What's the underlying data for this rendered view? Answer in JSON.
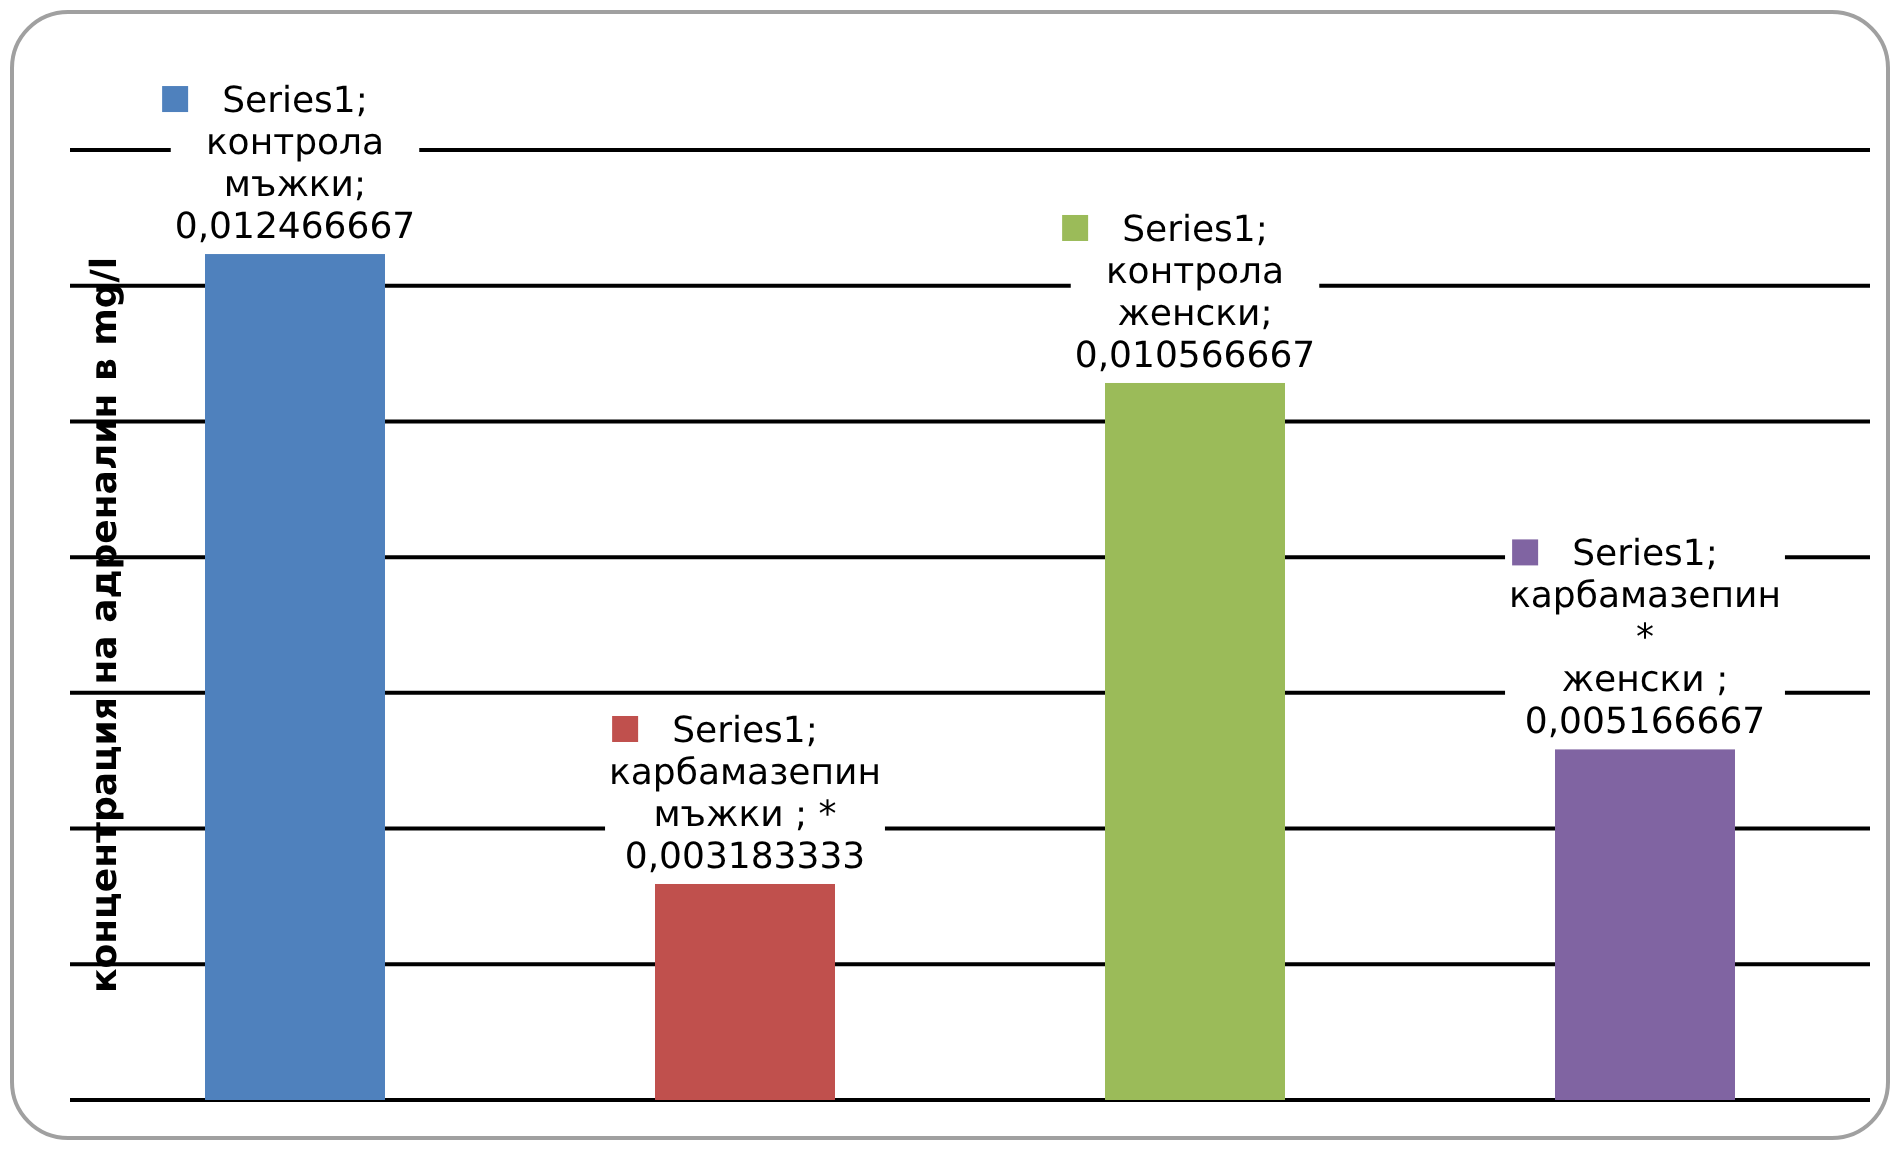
{
  "chart_data": {
    "type": "bar",
    "ylabel": "концентрация на адреналин в mg/l",
    "categories": [
      null,
      null,
      null,
      null
    ],
    "values": [
      0.012466667,
      0.003183333,
      0.010566667,
      0.005166667
    ],
    "colors": [
      "#4f81bd",
      "#c0504d",
      "#9bbb59",
      "#8064a2"
    ],
    "value_labels": [
      "Series1;\nконтрола\nмъжки;\n0,012466667",
      "Series1;\nкарбамазепин\nмъжки ; *\n0,003183333",
      "Series1;\nконтрола\nженски;\n0,010566667",
      "Series1;\nкарбамазепин\n*\nженски ;\n0,005166667"
    ],
    "ylim": [
      0,
      0.014
    ],
    "yticks": [
      {
        "value": 0,
        "label": null
      },
      {
        "value": 0.002,
        "label": null
      },
      {
        "value": 0.004,
        "label": null
      },
      {
        "value": 0.006,
        "label": null
      },
      {
        "value": 0.008,
        "label": null
      },
      {
        "value": 0.01,
        "label": null
      },
      {
        "value": 0.012,
        "label": null
      },
      {
        "value": 0.014,
        "label": null
      }
    ],
    "grid": "y",
    "tick_labels": false
  }
}
